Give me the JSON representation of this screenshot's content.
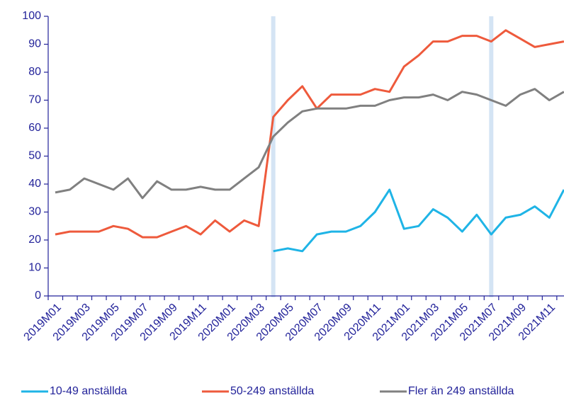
{
  "chart_data": {
    "type": "line",
    "categories": [
      "2019M01",
      null,
      "2019M03",
      null,
      "2019M05",
      null,
      "2019M07",
      null,
      "2019M09",
      null,
      "2019M11",
      null,
      "2020M01",
      null,
      "2020M03",
      null,
      "2020M05",
      null,
      "2020M07",
      null,
      "2020M09",
      null,
      "2020M11",
      null,
      "2021M01",
      null,
      "2021M03",
      null,
      "2021M05",
      null,
      "2021M07",
      null,
      "2021M09",
      null,
      "2021M11",
      null
    ],
    "series": [
      {
        "name": "10-49 anställda",
        "color": "#1fb4e6",
        "values": [
          null,
          null,
          null,
          null,
          null,
          null,
          null,
          null,
          null,
          null,
          null,
          null,
          null,
          null,
          null,
          16,
          17,
          16,
          22,
          23,
          23,
          25,
          30,
          38,
          24,
          25,
          31,
          28,
          23,
          29,
          22,
          28,
          29,
          32,
          28,
          38
        ]
      },
      {
        "name": "50-249 anställda",
        "color": "#ee5a3c",
        "values": [
          22,
          23,
          23,
          23,
          25,
          24,
          21,
          21,
          23,
          25,
          22,
          27,
          23,
          27,
          25,
          64,
          70,
          75,
          67,
          72,
          72,
          72,
          74,
          73,
          82,
          86,
          91,
          91,
          93,
          93,
          91,
          95,
          92,
          89,
          90,
          91
        ]
      },
      {
        "name": "Fler än 249 anställda",
        "color": "#808080",
        "values": [
          37,
          38,
          42,
          40,
          38,
          42,
          35,
          41,
          38,
          38,
          39,
          38,
          38,
          42,
          46,
          57,
          62,
          66,
          67,
          67,
          67,
          68,
          68,
          70,
          71,
          71,
          72,
          70,
          73,
          72,
          70,
          68,
          72,
          74,
          70,
          73
        ]
      }
    ],
    "ylim": [
      0,
      100
    ],
    "yticks": [
      0,
      10,
      20,
      30,
      40,
      50,
      60,
      70,
      80,
      90,
      100
    ],
    "grid": false,
    "legend": "bottom"
  }
}
